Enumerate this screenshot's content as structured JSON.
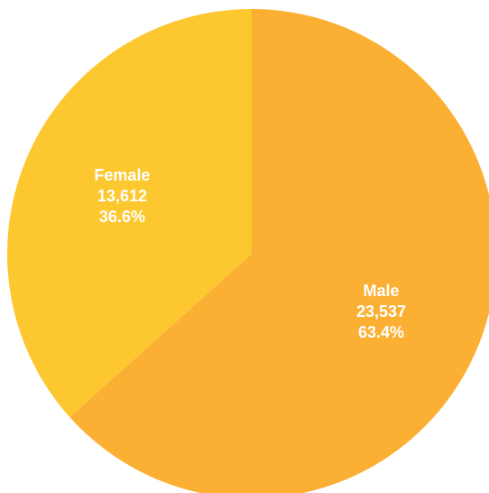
{
  "chart_data": {
    "type": "pie",
    "slices": [
      {
        "label": "Male",
        "value": 23537,
        "value_text": "23,537",
        "percent": 63.4,
        "percent_text": "63.4%",
        "color": "#FBB034"
      },
      {
        "label": "Female",
        "value": 13612,
        "value_text": "13,612",
        "percent": 36.6,
        "percent_text": "36.6%",
        "color": "#FDC72F"
      }
    ],
    "start_angle_deg": 0,
    "direction": "clockwise",
    "legend": "none"
  }
}
